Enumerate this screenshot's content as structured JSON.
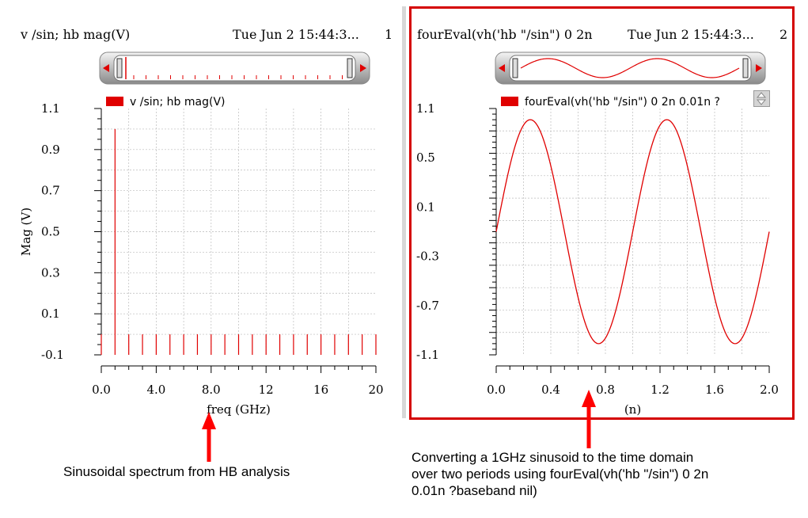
{
  "panels": [
    {
      "title": "v /sin; hb mag(V)",
      "timestamp": "Tue Jun 2 15:44:3...",
      "number": "1",
      "legend": "v /sin; hb mag(V)"
    },
    {
      "title": "fourEval(vh('hb \"/sin\") 0 2n",
      "timestamp": "Tue Jun 2 15:44:3...",
      "number": "2",
      "legend": "fourEval(vh('hb \"/sin\") 0 2n 0.01n ?"
    }
  ],
  "captions": {
    "left": "Sinusoidal spectrum from HB analysis",
    "right_line1": "Converting a 1GHz sinusoid to the time domain",
    "right_line2": "over two periods using fourEval(vh('hb \"/sin\") 0 2n",
    "right_line3": "0.01n ?baseband nil)"
  },
  "colors": {
    "trace": "#e00000",
    "highlight_border": "#d40000",
    "arrow": "#ff0000"
  },
  "chart_data": [
    {
      "type": "bar",
      "title": "",
      "xlabel": "freq (GHz)",
      "ylabel": "Mag (V)",
      "xlim": [
        0,
        20
      ],
      "ylim": [
        -0.1,
        1.1
      ],
      "xticks": [
        "0.0",
        "4.0",
        "8.0",
        "12",
        "16",
        "20"
      ],
      "yticks": [
        "1.1",
        "0.9",
        "0.7",
        "0.5",
        "0.3",
        "0.1",
        "-0.1"
      ],
      "x": [
        0,
        1,
        2,
        3,
        4,
        5,
        6,
        7,
        8,
        9,
        10,
        11,
        12,
        13,
        14,
        15,
        16,
        17,
        18,
        19,
        20
      ],
      "values": [
        0,
        1.0,
        0,
        0,
        0,
        0,
        0,
        0,
        0,
        0,
        0,
        0,
        0,
        0,
        0,
        0,
        0,
        0,
        0,
        0,
        0
      ],
      "grid": true
    },
    {
      "type": "line",
      "title": "",
      "xlabel": "(n)",
      "ylabel": "",
      "xlim": [
        0,
        2.0
      ],
      "ylim": [
        -1.1,
        1.1
      ],
      "xticks": [
        "0.0",
        "0.4",
        "0.8",
        "1.2",
        "1.6",
        "2.0"
      ],
      "yticks": [
        "1.1",
        "0.5",
        "0.1",
        "-0.3",
        "-0.7",
        "-1.1"
      ],
      "function": "sin(2*pi*1GHz*t)",
      "amplitude": 1.0,
      "frequency_GHz": 1.0,
      "grid": true
    }
  ]
}
